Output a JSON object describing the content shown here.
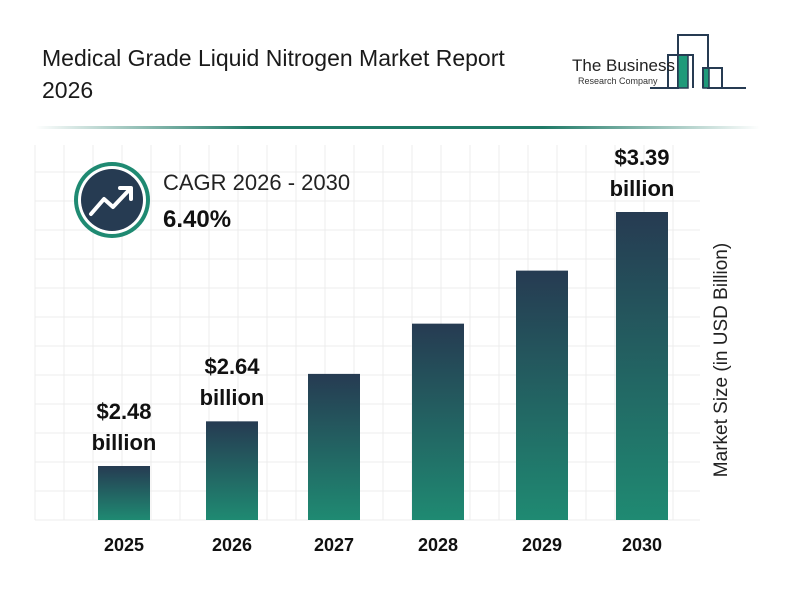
{
  "title": "Medical Grade Liquid Nitrogen Market Report 2026",
  "logo": {
    "line1": "The Business",
    "line2": "Research Company"
  },
  "cagr": {
    "label": "CAGR 2026 - 2030",
    "value": "6.40%",
    "icon": "trending-up-icon"
  },
  "colors": {
    "bar_top": "#263b52",
    "bar_bottom": "#1f8a72",
    "accent": "#1f7a67",
    "badge": "#263b52"
  },
  "chart_data": {
    "type": "bar",
    "categories": [
      "2025",
      "2026",
      "2027",
      "2028",
      "2029",
      "2030"
    ],
    "values": [
      2.48,
      2.64,
      2.81,
      2.99,
      3.18,
      3.39
    ],
    "data_labels": [
      {
        "index": 0,
        "value": "$2.48",
        "unit": "billion"
      },
      {
        "index": 1,
        "value": "$2.64",
        "unit": "billion"
      },
      {
        "index": 5,
        "value": "$3.39",
        "unit": "billion"
      }
    ],
    "xlabel": "",
    "ylabel": "Market Size (in USD Billion)",
    "grid": true
  }
}
